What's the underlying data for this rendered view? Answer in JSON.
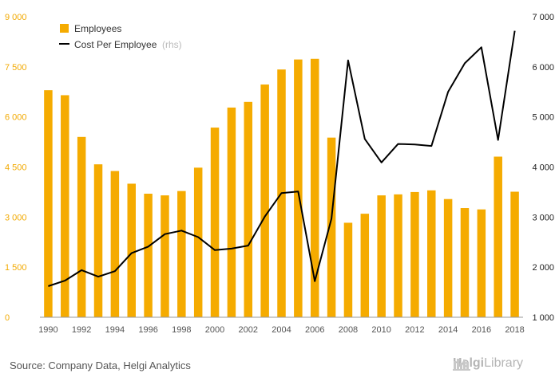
{
  "chart_data": {
    "type": "bar",
    "categories": [
      "1990",
      "1991",
      "1992",
      "1993",
      "1994",
      "1995",
      "1996",
      "1997",
      "1998",
      "1999",
      "2000",
      "2001",
      "2002",
      "2003",
      "2004",
      "2005",
      "2006",
      "2007",
      "2008",
      "2009",
      "2010",
      "2011",
      "2012",
      "2013",
      "2014",
      "2015",
      "2016",
      "2017",
      "2018"
    ],
    "x_tick_labels": [
      "1990",
      "1992",
      "1994",
      "1996",
      "1998",
      "2000",
      "2002",
      "2004",
      "2006",
      "2008",
      "2010",
      "2012",
      "2014",
      "2016",
      "2018"
    ],
    "series": [
      {
        "name": "Employees",
        "type": "bar",
        "axis": "left",
        "color": "#f5ab00",
        "values": [
          6800,
          6650,
          5400,
          4580,
          4380,
          4000,
          3700,
          3650,
          3780,
          4480,
          5680,
          6280,
          6450,
          6970,
          7420,
          7720,
          7740,
          5380,
          2830,
          3100,
          3650,
          3680,
          3750,
          3800,
          3540,
          3270,
          3230,
          4810,
          3760
        ]
      },
      {
        "name": "Cost Per Employee",
        "type": "line",
        "axis": "right",
        "color": "#000000",
        "values": [
          1620,
          1730,
          1940,
          1810,
          1920,
          2280,
          2410,
          2660,
          2730,
          2600,
          2340,
          2370,
          2430,
          3010,
          3480,
          3510,
          1720,
          2970,
          6130,
          4560,
          4090,
          4460,
          4450,
          4420,
          5500,
          6070,
          6390,
          4540,
          6720
        ]
      }
    ],
    "y_left": {
      "min": 0,
      "max": 9000,
      "ticks": [
        "0",
        "1 500",
        "3 000",
        "4 500",
        "6 000",
        "7 500",
        "9 000"
      ]
    },
    "y_right": {
      "min": 1000,
      "max": 7000,
      "ticks": [
        "1 000",
        "2 000",
        "3 000",
        "4 000",
        "5 000",
        "6 000",
        "7 000"
      ]
    },
    "legend": {
      "items": [
        "Employees",
        "Cost Per Employee"
      ],
      "note": "(rhs)",
      "placement": "top-left"
    },
    "grid": false
  },
  "footer": {
    "source": "Source: Company Data, Helgi Analytics",
    "brand_helgi": "Helgi",
    "brand_library": "Library"
  }
}
